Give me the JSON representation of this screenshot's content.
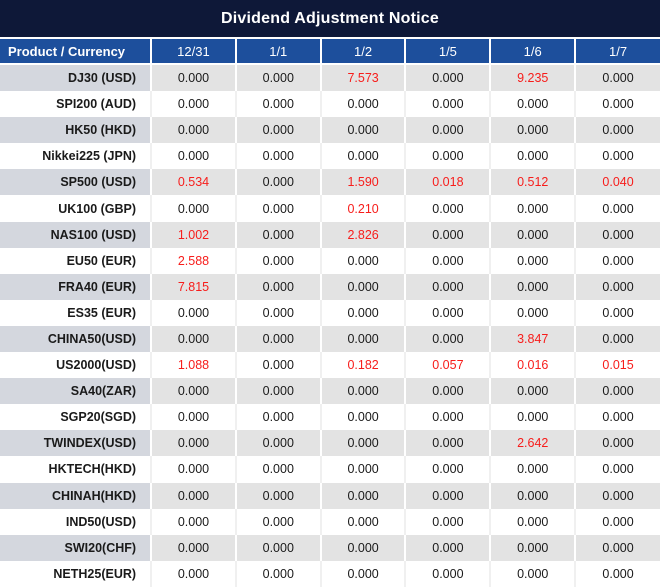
{
  "title": "Dividend Adjustment Notice",
  "colors": {
    "title_bg": "#0e1838",
    "header_bg": "#1d4f9c",
    "stripe_value_bg": "#e3e3e3",
    "stripe_product_bg": "#d4d7de",
    "negative_red": "#f71d1b",
    "text_black": "#1a1a1a"
  },
  "chart_data": {
    "type": "table",
    "title": "Dividend Adjustment Notice",
    "columns": [
      "Product / Currency",
      "12/31",
      "1/1",
      "1/2",
      "1/5",
      "1/6",
      "1/7"
    ],
    "rows": [
      {
        "product": "DJ30 (USD)",
        "values": [
          "0.000",
          "0.000",
          "7.573",
          "0.000",
          "9.235",
          "0.000"
        ],
        "red": [
          false,
          false,
          true,
          false,
          true,
          false
        ]
      },
      {
        "product": "SPI200 (AUD)",
        "values": [
          "0.000",
          "0.000",
          "0.000",
          "0.000",
          "0.000",
          "0.000"
        ],
        "red": [
          false,
          false,
          false,
          false,
          false,
          false
        ]
      },
      {
        "product": "HK50 (HKD)",
        "values": [
          "0.000",
          "0.000",
          "0.000",
          "0.000",
          "0.000",
          "0.000"
        ],
        "red": [
          false,
          false,
          false,
          false,
          false,
          false
        ]
      },
      {
        "product": "Nikkei225 (JPN)",
        "values": [
          "0.000",
          "0.000",
          "0.000",
          "0.000",
          "0.000",
          "0.000"
        ],
        "red": [
          false,
          false,
          false,
          false,
          false,
          false
        ]
      },
      {
        "product": "SP500 (USD)",
        "values": [
          "0.534",
          "0.000",
          "1.590",
          "0.018",
          "0.512",
          "0.040"
        ],
        "red": [
          true,
          false,
          true,
          true,
          true,
          true
        ]
      },
      {
        "product": "UK100 (GBP)",
        "values": [
          "0.000",
          "0.000",
          "0.210",
          "0.000",
          "0.000",
          "0.000"
        ],
        "red": [
          false,
          false,
          true,
          false,
          false,
          false
        ]
      },
      {
        "product": "NAS100 (USD)",
        "values": [
          "1.002",
          "0.000",
          "2.826",
          "0.000",
          "0.000",
          "0.000"
        ],
        "red": [
          true,
          false,
          true,
          false,
          false,
          false
        ]
      },
      {
        "product": "EU50 (EUR)",
        "values": [
          "2.588",
          "0.000",
          "0.000",
          "0.000",
          "0.000",
          "0.000"
        ],
        "red": [
          true,
          false,
          false,
          false,
          false,
          false
        ]
      },
      {
        "product": "FRA40 (EUR)",
        "values": [
          "7.815",
          "0.000",
          "0.000",
          "0.000",
          "0.000",
          "0.000"
        ],
        "red": [
          true,
          false,
          false,
          false,
          false,
          false
        ]
      },
      {
        "product": "ES35 (EUR)",
        "values": [
          "0.000",
          "0.000",
          "0.000",
          "0.000",
          "0.000",
          "0.000"
        ],
        "red": [
          false,
          false,
          false,
          false,
          false,
          false
        ]
      },
      {
        "product": "CHINA50(USD)",
        "values": [
          "0.000",
          "0.000",
          "0.000",
          "0.000",
          "3.847",
          "0.000"
        ],
        "red": [
          false,
          false,
          false,
          false,
          true,
          false
        ]
      },
      {
        "product": "US2000(USD)",
        "values": [
          "1.088",
          "0.000",
          "0.182",
          "0.057",
          "0.016",
          "0.015"
        ],
        "red": [
          true,
          false,
          true,
          true,
          true,
          true
        ]
      },
      {
        "product": "SA40(ZAR)",
        "values": [
          "0.000",
          "0.000",
          "0.000",
          "0.000",
          "0.000",
          "0.000"
        ],
        "red": [
          false,
          false,
          false,
          false,
          false,
          false
        ]
      },
      {
        "product": "SGP20(SGD)",
        "values": [
          "0.000",
          "0.000",
          "0.000",
          "0.000",
          "0.000",
          "0.000"
        ],
        "red": [
          false,
          false,
          false,
          false,
          false,
          false
        ]
      },
      {
        "product": "TWINDEX(USD)",
        "values": [
          "0.000",
          "0.000",
          "0.000",
          "0.000",
          "2.642",
          "0.000"
        ],
        "red": [
          false,
          false,
          false,
          false,
          true,
          false
        ]
      },
      {
        "product": "HKTECH(HKD)",
        "values": [
          "0.000",
          "0.000",
          "0.000",
          "0.000",
          "0.000",
          "0.000"
        ],
        "red": [
          false,
          false,
          false,
          false,
          false,
          false
        ]
      },
      {
        "product": "CHINAH(HKD)",
        "values": [
          "0.000",
          "0.000",
          "0.000",
          "0.000",
          "0.000",
          "0.000"
        ],
        "red": [
          false,
          false,
          false,
          false,
          false,
          false
        ]
      },
      {
        "product": "IND50(USD)",
        "values": [
          "0.000",
          "0.000",
          "0.000",
          "0.000",
          "0.000",
          "0.000"
        ],
        "red": [
          false,
          false,
          false,
          false,
          false,
          false
        ]
      },
      {
        "product": "SWI20(CHF)",
        "values": [
          "0.000",
          "0.000",
          "0.000",
          "0.000",
          "0.000",
          "0.000"
        ],
        "red": [
          false,
          false,
          false,
          false,
          false,
          false
        ]
      },
      {
        "product": "NETH25(EUR)",
        "values": [
          "0.000",
          "0.000",
          "0.000",
          "0.000",
          "0.000",
          "0.000"
        ],
        "red": [
          false,
          false,
          false,
          false,
          false,
          false
        ]
      }
    ]
  }
}
